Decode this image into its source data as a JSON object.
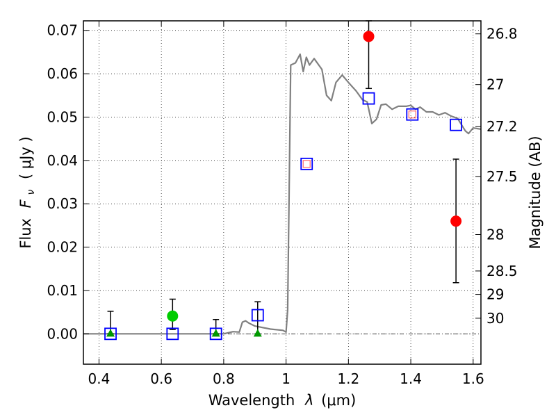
{
  "chart_data": {
    "type": "scatter",
    "xlabel_prefix": "Wavelength",
    "xlabel_symbol": "λ",
    "xlabel_unit": "(μm)",
    "ylabel_prefix": "Flux",
    "ylabel_symbol": "F",
    "ylabel_subscript": "ν",
    "ylabel_unit": "( μJy )",
    "y2label": "Magnitude (AB)",
    "xlim": [
      0.35,
      1.625
    ],
    "ylim": [
      -0.007,
      0.0722
    ],
    "xticks": [
      {
        "value": 0.4,
        "label": "0.4"
      },
      {
        "value": 0.6,
        "label": "0.6"
      },
      {
        "value": 0.8,
        "label": "0.8"
      },
      {
        "value": 1.0,
        "label": "1"
      },
      {
        "value": 1.2,
        "label": "1.2"
      },
      {
        "value": 1.4,
        "label": "1.4"
      },
      {
        "value": 1.6,
        "label": "1.6"
      }
    ],
    "yticks": [
      {
        "value": 0.0,
        "label": "0.00"
      },
      {
        "value": 0.01,
        "label": "0.01"
      },
      {
        "value": 0.02,
        "label": "0.02"
      },
      {
        "value": 0.03,
        "label": "0.03"
      },
      {
        "value": 0.04,
        "label": "0.04"
      },
      {
        "value": 0.05,
        "label": "0.05"
      },
      {
        "value": 0.06,
        "label": "0.06"
      },
      {
        "value": 0.07,
        "label": "0.07"
      }
    ],
    "y2ticks": [
      {
        "flux": 0.0692,
        "label": "26.8"
      },
      {
        "flux": 0.0575,
        "label": "27"
      },
      {
        "flux": 0.0478,
        "label": "27.2"
      },
      {
        "flux": 0.0363,
        "label": "27.5"
      },
      {
        "flux": 0.0229,
        "label": "28"
      },
      {
        "flux": 0.0145,
        "label": "28.5"
      },
      {
        "flux": 0.0091,
        "label": "29"
      },
      {
        "flux": 0.0036,
        "label": "30"
      }
    ],
    "grid": true,
    "zero_line": true,
    "colors": {
      "sed_line": "#808080",
      "model_squares": "#0000ff",
      "inner_squares": "#ff6666",
      "red_points": "#ff0000",
      "green_points": "#00cc00",
      "green_triangles": "#009900",
      "error_bars": "#000000"
    },
    "sed_model": {
      "x": [
        0.35,
        0.5,
        0.7,
        0.8,
        0.83,
        0.85,
        0.86,
        0.87,
        0.88,
        0.9,
        0.95,
        0.99,
        1.0,
        1.005,
        1.015,
        1.03,
        1.045,
        1.055,
        1.065,
        1.075,
        1.09,
        1.115,
        1.13,
        1.145,
        1.16,
        1.18,
        1.2,
        1.225,
        1.245,
        1.26,
        1.275,
        1.29,
        1.305,
        1.32,
        1.34,
        1.36,
        1.385,
        1.4,
        1.415,
        1.43,
        1.45,
        1.47,
        1.49,
        1.51,
        1.53,
        1.55,
        1.575,
        1.585,
        1.6,
        1.625
      ],
      "y": [
        0.0,
        0.0,
        0.0,
        0.0,
        0.0005,
        0.0004,
        0.0027,
        0.003,
        0.0025,
        0.0018,
        0.0011,
        0.0008,
        0.0004,
        0.0055,
        0.062,
        0.0625,
        0.0645,
        0.0605,
        0.0638,
        0.062,
        0.0635,
        0.061,
        0.055,
        0.0538,
        0.058,
        0.0597,
        0.058,
        0.056,
        0.054,
        0.0535,
        0.0485,
        0.0495,
        0.0528,
        0.053,
        0.0518,
        0.0525,
        0.0525,
        0.0527,
        0.0518,
        0.0523,
        0.0512,
        0.0512,
        0.0505,
        0.051,
        0.0502,
        0.0497,
        0.0468,
        0.0462,
        0.0475,
        0.0472
      ]
    },
    "model_bandpass": {
      "x": [
        0.437,
        0.636,
        0.775,
        0.909,
        1.066,
        1.265,
        1.405,
        1.545
      ],
      "y": [
        0.0,
        0.0,
        0.0,
        0.0043,
        0.0392,
        0.0543,
        0.0506,
        0.0482
      ]
    },
    "inner_squares": {
      "x": [
        1.066,
        1.405
      ],
      "y": [
        0.0392,
        0.0506
      ]
    },
    "observed_red": {
      "x": [
        1.265,
        1.545
      ],
      "y": [
        0.0686,
        0.026
      ],
      "err_low": [
        0.0566,
        0.0118
      ],
      "err_high": [
        0.0722,
        0.0403
      ]
    },
    "observed_green": {
      "x": [
        0.636
      ],
      "y": [
        0.0041
      ],
      "err_low": [
        0.001
      ],
      "err_high": [
        0.008
      ]
    },
    "upper_limits_triangles": {
      "x": [
        0.437,
        0.775,
        0.909
      ],
      "y": [
        0.0,
        0.0,
        0.0
      ]
    },
    "upper_limit_errorbars": {
      "x": [
        0.437,
        0.775,
        0.909
      ],
      "low": [
        0.0,
        0.0,
        0.0
      ],
      "high": [
        0.0052,
        0.0033,
        0.0074
      ]
    }
  }
}
